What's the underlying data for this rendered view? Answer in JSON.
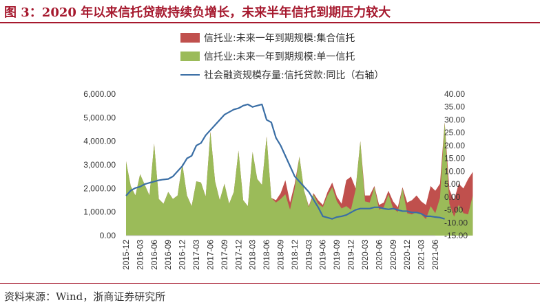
{
  "figure": {
    "title": "图 3：2020 年以来信托贷款持续负增长，未来半年信托到期压力较大",
    "source": "资料来源：Wind，浙商证券研究所"
  },
  "legend": [
    {
      "label": "信托业:未来一年到期规模:集合信托",
      "color": "#c0504d",
      "kind": "area"
    },
    {
      "label": "信托业:未来一年到期规模:单一信托",
      "color": "#9bbb59",
      "kind": "area"
    },
    {
      "label": "社会融资规模存量:信托贷款:同比（右轴）",
      "color": "#3a6ea5",
      "kind": "line"
    }
  ],
  "chart_data": {
    "type": "area",
    "x_tick_labels": [
      "2015-12",
      "2016-03",
      "2016-06",
      "2016-09",
      "2016-12",
      "2017-03",
      "2017-06",
      "2017-09",
      "2017-12",
      "2018-03",
      "2018-06",
      "2018-09",
      "2018-12",
      "2019-03",
      "2019-06",
      "2019-09",
      "2019-12",
      "2020-03",
      "2020-06",
      "2020-09",
      "2020-12",
      "2021-03",
      "2021-06"
    ],
    "x_start": "2015-12",
    "x_end": "2021-06",
    "left_axis": {
      "min": 0,
      "max": 6000,
      "ticks": [
        "0.00",
        "1,000.00",
        "2,000.00",
        "3,000.00",
        "4,000.00",
        "5,000.00",
        "6,000.00"
      ]
    },
    "right_axis": {
      "min": -15,
      "max": 40,
      "ticks": [
        "-15.00",
        "-10.00",
        "-5.00",
        "0.00",
        "5.00",
        "10.00",
        "15.00",
        "20.00",
        "25.00",
        "30.00",
        "35.00",
        "40.00"
      ]
    },
    "series": [
      {
        "name": "信托业:未来一年到期规模:单一信托",
        "axis": "left",
        "color": "#9bbb59",
        "values": [
          3150,
          2100,
          1700,
          2600,
          2150,
          1700,
          3900,
          1550,
          1350,
          1850,
          1550,
          1700,
          3050,
          1700,
          1250,
          2300,
          2250,
          1650,
          4400,
          2300,
          1500,
          2200,
          1350,
          1850,
          3600,
          1500,
          1250,
          3550,
          2400,
          2150,
          4200,
          1600,
          1400,
          1550,
          1750,
          1100,
          2000,
          3350,
          1900,
          1200,
          1750,
          1350,
          1200,
          1700,
          2050,
          1450,
          1150,
          1250,
          1100,
          1950,
          4000,
          1450,
          1400,
          2050,
          1100,
          1200,
          1750,
          1150,
          1000,
          2000,
          950,
          900,
          1000,
          900,
          700,
          1250,
          950,
          1600,
          4800,
          1350,
          800,
          1300,
          950,
          900,
          1700
        ]
      },
      {
        "name": "信托业:未来一年到期规模:集合信托",
        "axis": "left",
        "color": "#c0504d",
        "values": [
          3150,
          2100,
          1700,
          2600,
          2150,
          1700,
          3900,
          1550,
          1350,
          1850,
          1550,
          1700,
          3050,
          1700,
          1250,
          2300,
          2250,
          1650,
          4400,
          2300,
          1500,
          2200,
          1350,
          1850,
          3600,
          1500,
          1250,
          3550,
          2400,
          2150,
          4200,
          1600,
          1500,
          1800,
          2350,
          1400,
          2200,
          3350,
          1900,
          1250,
          1800,
          1500,
          1300,
          1850,
          2250,
          1650,
          1350,
          2350,
          2500,
          2000,
          4000,
          1700,
          1700,
          2100,
          1300,
          1400,
          1900,
          1450,
          1200,
          2050,
          1400,
          1500,
          1700,
          1450,
          1300,
          2100,
          1900,
          2200,
          4800,
          1950,
          1500,
          2200,
          2000,
          2400,
          2700
        ]
      },
      {
        "name": "社会融资规模存量:信托贷款:同比",
        "axis": "right",
        "color": "#3a6ea5",
        "values": [
          0.5,
          2.5,
          3.5,
          4,
          5,
          5.5,
          6,
          6.5,
          6.8,
          7,
          8,
          10,
          12,
          15,
          16,
          20,
          21,
          24,
          26,
          28,
          30,
          32,
          33,
          34,
          34.5,
          35.5,
          36,
          35,
          35.5,
          36,
          30,
          29,
          23,
          20,
          16,
          12,
          8,
          6,
          4,
          2,
          -1,
          -4,
          -7.5,
          -8,
          -8.5,
          -7.8,
          -7.5,
          -7,
          -6,
          -5,
          -4.5,
          -4.5,
          -4.5,
          -4,
          -4,
          -4.5,
          -4.8,
          -4.5,
          -5,
          -5.5,
          -5.5,
          -6,
          -6,
          -6.5,
          -7.5,
          -7.5,
          -7.8,
          -8,
          -8.5
        ]
      }
    ],
    "grid": false,
    "legend_position": "top"
  }
}
